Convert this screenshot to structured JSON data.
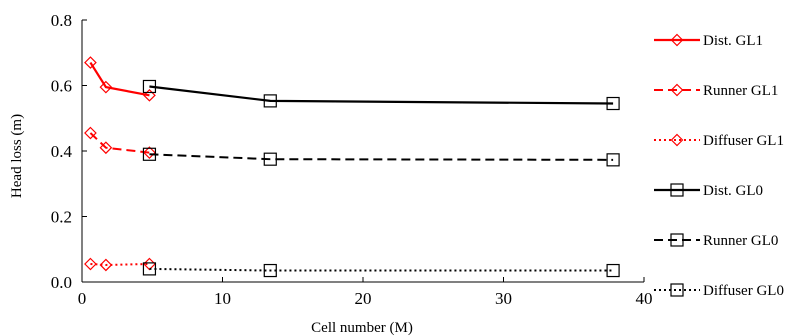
{
  "chart_data": {
    "type": "line",
    "title": "",
    "xlabel": "Cell number (M)",
    "ylabel": "Head loss (m)",
    "xlim": [
      0,
      40
    ],
    "ylim": [
      0,
      0.8
    ],
    "xticks": [
      0,
      10,
      20,
      30,
      40
    ],
    "yticks": [
      0.0,
      0.2,
      0.4,
      0.6,
      0.8
    ],
    "xtick_labels": [
      "0",
      "10",
      "20",
      "30",
      "40"
    ],
    "ytick_labels": [
      "0.0",
      "0.2",
      "0.4",
      "0.6",
      "0.8"
    ],
    "grid": false,
    "legend_position": "right",
    "series": [
      {
        "name": "Dist. GL1",
        "color": "#ff0000",
        "dash": "solid",
        "marker": "diamond",
        "x": [
          0.6,
          1.7,
          4.8
        ],
        "y": [
          0.67,
          0.595,
          0.57
        ]
      },
      {
        "name": "Runner GL1",
        "color": "#ff0000",
        "dash": "dashed",
        "marker": "diamond",
        "x": [
          0.6,
          1.7,
          4.8
        ],
        "y": [
          0.455,
          0.41,
          0.395
        ]
      },
      {
        "name": "Diffuser GL1",
        "color": "#ff0000",
        "dash": "dotted",
        "marker": "diamond",
        "x": [
          0.6,
          1.7,
          4.8
        ],
        "y": [
          0.055,
          0.052,
          0.055
        ]
      },
      {
        "name": "Dist. GL0",
        "color": "#000000",
        "dash": "solid",
        "marker": "square",
        "x": [
          4.8,
          13.4,
          37.8
        ],
        "y": [
          0.597,
          0.553,
          0.545
        ]
      },
      {
        "name": "Runner GL0",
        "color": "#000000",
        "dash": "dashed",
        "marker": "square",
        "x": [
          4.8,
          13.4,
          37.8
        ],
        "y": [
          0.39,
          0.375,
          0.373
        ]
      },
      {
        "name": "Diffuser GL0",
        "color": "#000000",
        "dash": "dotted",
        "marker": "square",
        "x": [
          4.8,
          13.4,
          37.8
        ],
        "y": [
          0.04,
          0.035,
          0.035
        ]
      }
    ]
  }
}
